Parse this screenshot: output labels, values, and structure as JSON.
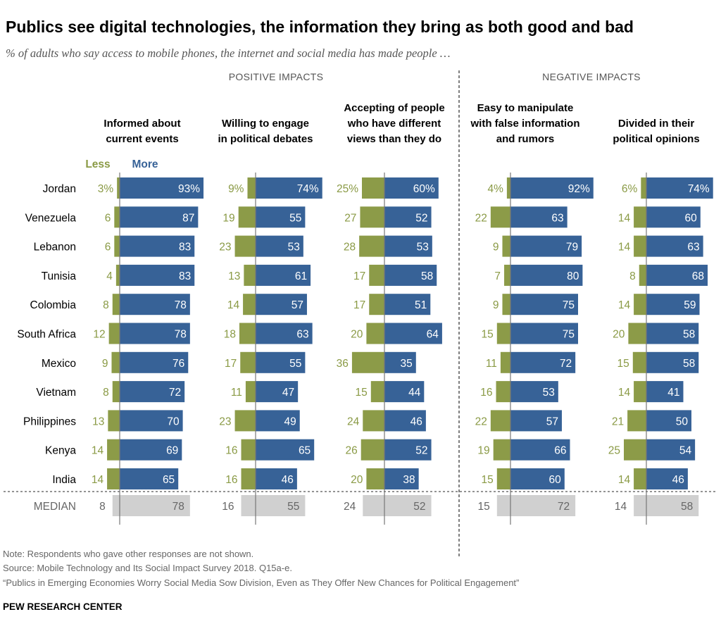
{
  "title": "Publics see digital technologies, the information they bring as both good and bad",
  "subtitle": "% of adults who say access to mobile phones, the internet and social media has made people …",
  "sections": {
    "positive": "POSITIVE IMPACTS",
    "negative": "NEGATIVE IMPACTS"
  },
  "legend": {
    "less": "Less",
    "more": "More"
  },
  "colors": {
    "less": "#8c9b48",
    "more": "#376297",
    "median": "#d0d0d0",
    "less_text": "#8a9a45"
  },
  "chart_data": {
    "type": "bar",
    "orientation": "horizontal-diverging",
    "categories": [
      "Jordan",
      "Venezuela",
      "Lebanon",
      "Tunisia",
      "Colombia",
      "South Africa",
      "Mexico",
      "Vietnam",
      "Philippines",
      "Kenya",
      "India"
    ],
    "median_label": "MEDIAN",
    "panels": [
      {
        "title": [
          "Informed about",
          "current events"
        ],
        "section": "positive",
        "less": [
          3,
          6,
          6,
          4,
          8,
          12,
          9,
          8,
          13,
          14,
          14
        ],
        "more": [
          93,
          87,
          83,
          83,
          78,
          78,
          76,
          72,
          70,
          69,
          65
        ],
        "median": {
          "less": 8,
          "more": 78
        }
      },
      {
        "title": [
          "Willing to engage",
          "in political debates"
        ],
        "section": "positive",
        "less": [
          9,
          19,
          23,
          13,
          14,
          18,
          17,
          11,
          23,
          16,
          16
        ],
        "more": [
          74,
          55,
          53,
          61,
          57,
          63,
          55,
          47,
          49,
          65,
          46
        ],
        "median": {
          "less": 16,
          "more": 55
        }
      },
      {
        "title": [
          "Accepting of people",
          "who have different",
          "views than they do"
        ],
        "section": "positive",
        "less": [
          25,
          27,
          28,
          17,
          17,
          20,
          36,
          15,
          24,
          26,
          20
        ],
        "more": [
          60,
          52,
          53,
          58,
          51,
          64,
          35,
          44,
          46,
          52,
          38
        ],
        "median": {
          "less": 24,
          "more": 52
        }
      },
      {
        "title": [
          "Easy to manipulate",
          "with false information",
          "and rumors"
        ],
        "section": "negative",
        "less": [
          4,
          22,
          9,
          7,
          9,
          15,
          11,
          16,
          22,
          19,
          15
        ],
        "more": [
          92,
          63,
          79,
          80,
          75,
          75,
          72,
          53,
          57,
          66,
          60
        ],
        "median": {
          "less": 15,
          "more": 72
        }
      },
      {
        "title": [
          "Divided in their",
          "political opinions"
        ],
        "section": "negative",
        "less": [
          6,
          14,
          14,
          8,
          14,
          20,
          15,
          14,
          21,
          25,
          14
        ],
        "more": [
          74,
          60,
          63,
          68,
          59,
          58,
          58,
          41,
          50,
          54,
          46
        ],
        "median": {
          "less": 14,
          "more": 58
        }
      }
    ],
    "first_row_percent_suffix": "%"
  },
  "footer": {
    "note": "Note: Respondents who gave other responses are not shown.",
    "source": "Source: Mobile Technology and Its Social Impact Survey 2018. Q15a-e.",
    "report": "“Publics in Emerging Economies Worry Social Media Sow Division, Even as They Offer New Chances for Political Engagement”",
    "brand": "PEW RESEARCH CENTER"
  }
}
